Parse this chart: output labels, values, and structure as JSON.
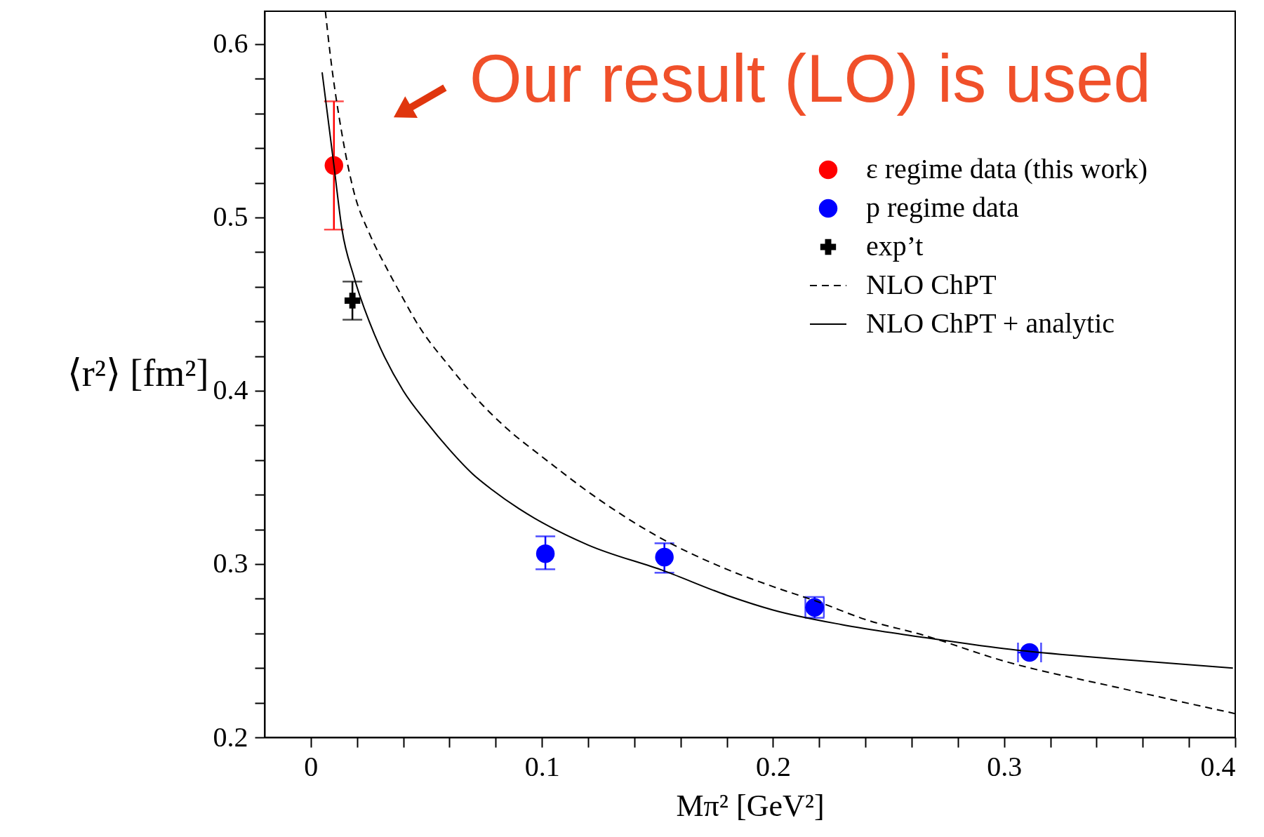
{
  "chart_data": {
    "type": "scatter",
    "xlabel": "Mπ² [GeV²]",
    "ylabel": "⟨r²⟩ [fm²]",
    "annotations": [
      "Our result (LO) is used"
    ],
    "xlim": [
      -0.02,
      0.4
    ],
    "ylim": [
      0.2,
      0.619
    ],
    "xticks": [
      0,
      {
        "value": 0.02,
        "label": null
      },
      {
        "value": 0.04,
        "label": null
      },
      {
        "value": 0.06,
        "label": null
      },
      {
        "value": 0.08,
        "label": null
      },
      0.1,
      {
        "value": 0.12,
        "label": null
      },
      {
        "value": 0.14,
        "label": null
      },
      {
        "value": 0.16,
        "label": null
      },
      {
        "value": 0.18,
        "label": null
      },
      0.2,
      {
        "value": 0.22,
        "label": null
      },
      {
        "value": 0.24,
        "label": null
      },
      {
        "value": 0.26,
        "label": null
      },
      {
        "value": 0.28,
        "label": null
      },
      0.3,
      {
        "value": 0.32,
        "label": null
      },
      {
        "value": 0.34,
        "label": null
      },
      {
        "value": 0.36,
        "label": null
      },
      {
        "value": 0.38,
        "label": null
      },
      0.4
    ],
    "yticks": [
      0.2,
      {
        "value": 0.22,
        "label": null
      },
      {
        "value": 0.24,
        "label": null
      },
      {
        "value": 0.26,
        "label": null
      },
      {
        "value": 0.28,
        "label": null
      },
      0.3,
      {
        "value": 0.32,
        "label": null
      },
      {
        "value": 0.34,
        "label": null
      },
      {
        "value": 0.36,
        "label": null
      },
      {
        "value": 0.38,
        "label": null
      },
      0.4,
      {
        "value": 0.42,
        "label": null
      },
      {
        "value": 0.44,
        "label": null
      },
      {
        "value": 0.46,
        "label": null
      },
      {
        "value": 0.48,
        "label": null
      },
      0.5,
      {
        "value": 0.52,
        "label": null
      },
      {
        "value": 0.54,
        "label": null
      },
      {
        "value": 0.56,
        "label": null
      },
      {
        "value": 0.58,
        "label": null
      },
      0.6
    ],
    "grid": false,
    "legend": "top right",
    "series": [
      {
        "name": "ε regime data (this work)",
        "marker": "circle",
        "color": "#ff0000",
        "x": [
          0.01
        ],
        "values": [
          0.53
        ],
        "errors": [
          [
            0.493,
            0.567
          ]
        ]
      },
      {
        "name": "p regime data",
        "marker": "circle",
        "color": "#0000ff",
        "x": [
          0.1015,
          0.153,
          0.218,
          0.311
        ],
        "values": [
          0.306,
          0.304,
          0.275,
          0.249
        ],
        "errors": [
          [
            0.297,
            0.316
          ],
          [
            0.295,
            0.312
          ],
          [
            0.269,
            0.281
          ],
          null
        ],
        "xerrors": [
          null,
          null,
          0.004,
          0.005
        ]
      },
      {
        "name": "exp’t",
        "marker": "cross",
        "color": "#000000",
        "x": [
          0.018
        ],
        "values": [
          0.452
        ],
        "errors": [
          [
            0.441,
            0.463
          ]
        ]
      },
      {
        "name": "NLO ChPT",
        "type": "line",
        "line_style": "dashed",
        "color": "#000000",
        "x": [
          0.0063,
          0.0084,
          0.0135,
          0.0186,
          0.0256,
          0.0327,
          0.0388,
          0.0469,
          0.06,
          0.07,
          0.085,
          0.1,
          0.125,
          0.15,
          0.18,
          0.2,
          0.22,
          0.24,
          0.265,
          0.3,
          0.35,
          0.4
        ],
        "values": [
          0.619,
          0.594,
          0.548,
          0.515,
          0.49,
          0.471,
          0.456,
          0.437,
          0.414,
          0.398,
          0.378,
          0.362,
          0.337,
          0.316,
          0.297,
          0.287,
          0.278,
          0.268,
          0.259,
          0.244,
          0.2285,
          0.2137
        ]
      },
      {
        "name": "NLO ChPT + analytic",
        "type": "line",
        "line_style": "solid",
        "color": "#000000",
        "x": [
          0.0049,
          0.0084,
          0.01,
          0.0135,
          0.0186,
          0.0277,
          0.04,
          0.05,
          0.06,
          0.07,
          0.0783,
          0.09,
          0.1,
          0.12,
          0.153,
          0.18,
          0.2,
          0.23,
          0.2635,
          0.3,
          0.35,
          0.399
        ],
        "values": [
          0.5837,
          0.547,
          0.53,
          0.493,
          0.466,
          0.432,
          0.4,
          0.382,
          0.366,
          0.352,
          0.343,
          0.332,
          0.324,
          0.311,
          0.296,
          0.282,
          0.2735,
          0.265,
          0.258,
          0.2512,
          0.245,
          0.24
        ]
      }
    ]
  }
}
